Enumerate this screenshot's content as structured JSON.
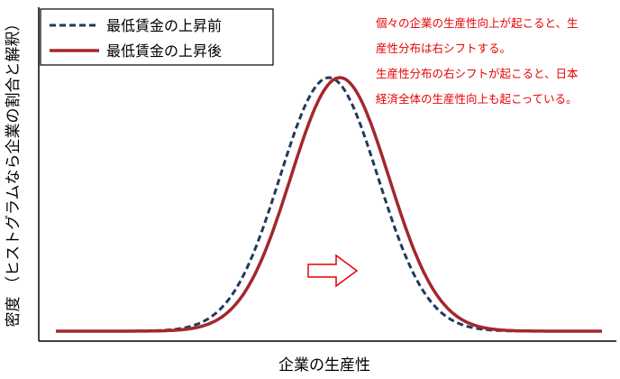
{
  "chart_data": {
    "type": "line",
    "xlabel": "企業の生産性",
    "ylabel": "密度 （ヒストグラムなら企業の割合と解釈）",
    "grid": false,
    "legend_position": "top-left",
    "series": [
      {
        "name": "最低賃金の上昇前",
        "style": "dashed",
        "color": "#1f3b5c",
        "peak_x": 0.5,
        "std": 0.09
      },
      {
        "name": "最低賃金の上昇後",
        "style": "solid",
        "color": "#a3272e",
        "peak_x": 0.52,
        "std": 0.09
      }
    ],
    "annotations": [
      "個々の企業の生産性向上が起こると、生",
      "産性分布は右シフトする。",
      "生産性分布の右シフトが起こると、日本",
      "経済全体の生産性向上も起こっている。"
    ],
    "arrow_color": "#e60000"
  }
}
